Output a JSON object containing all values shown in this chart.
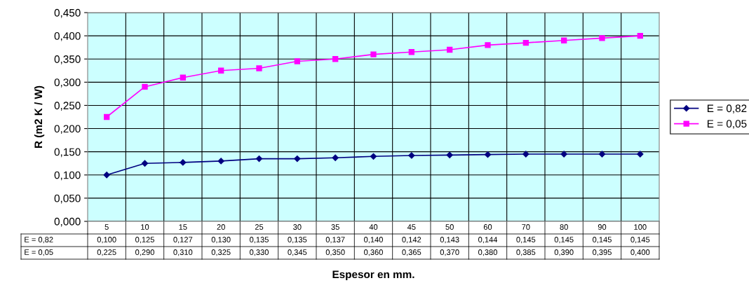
{
  "chart_data": {
    "type": "line",
    "xlabel": "Espesor en mm.",
    "ylabel": "R (m2 K / W)",
    "categories": [
      "5",
      "10",
      "15",
      "20",
      "25",
      "30",
      "35",
      "40",
      "45",
      "50",
      "60",
      "70",
      "80",
      "90",
      "100"
    ],
    "series": [
      {
        "name": "E = 0,82",
        "color": "#000080",
        "marker": "diamond",
        "values": [
          0.1,
          0.125,
          0.127,
          0.13,
          0.135,
          0.135,
          0.137,
          0.14,
          0.142,
          0.143,
          0.144,
          0.145,
          0.145,
          0.145,
          0.145
        ],
        "value_labels": [
          "0,100",
          "0,125",
          "0,127",
          "0,130",
          "0,135",
          "0,135",
          "0,137",
          "0,140",
          "0,142",
          "0,143",
          "0,144",
          "0,145",
          "0,145",
          "0,145",
          "0,145"
        ]
      },
      {
        "name": "E = 0,05",
        "color": "#ff00ff",
        "marker": "square",
        "values": [
          0.225,
          0.29,
          0.31,
          0.325,
          0.33,
          0.345,
          0.35,
          0.36,
          0.365,
          0.37,
          0.38,
          0.385,
          0.39,
          0.395,
          0.4
        ],
        "value_labels": [
          "0,225",
          "0,290",
          "0,310",
          "0,325",
          "0,330",
          "0,345",
          "0,350",
          "0,360",
          "0,365",
          "0,370",
          "0,380",
          "0,385",
          "0,390",
          "0,395",
          "0,400"
        ]
      }
    ],
    "ylim": [
      0,
      0.45
    ],
    "yticks": [
      {
        "value": 0,
        "label": "0,000"
      },
      {
        "value": 0.05,
        "label": "0,050"
      },
      {
        "value": 0.1,
        "label": "0,100"
      },
      {
        "value": 0.15,
        "label": "0,150"
      },
      {
        "value": 0.2,
        "label": "0,200"
      },
      {
        "value": 0.25,
        "label": "0,250"
      },
      {
        "value": 0.3,
        "label": "0,300"
      },
      {
        "value": 0.35,
        "label": "0,350"
      },
      {
        "value": 0.4,
        "label": "0,400"
      },
      {
        "value": 0.45,
        "label": "0,450"
      }
    ],
    "grid": true,
    "legend": "right",
    "line_style": "solid"
  }
}
